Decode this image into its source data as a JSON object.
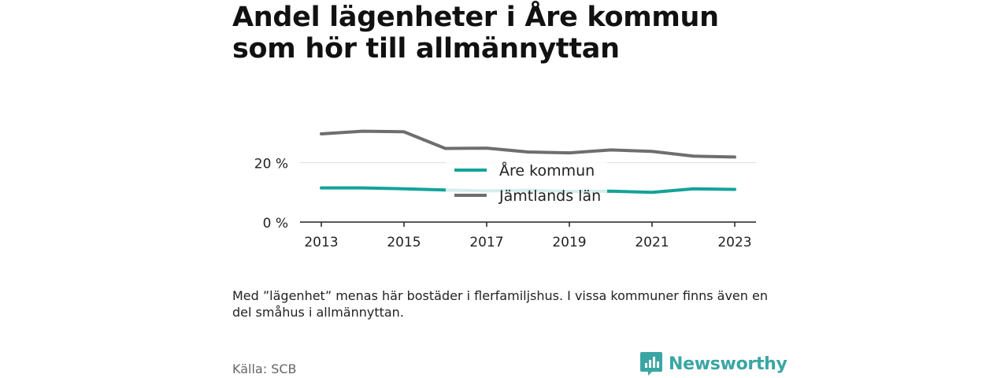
{
  "title": "Andel lägenheter i Åre kommun som hör till allmännyttan",
  "note": "Med ”lägenhet” menas här bostäder i flerfamiljshus. I vissa kommuner finns även en del småhus i allmännyttan.",
  "source": "Källa: SCB",
  "brand": {
    "name": "Newsworthy",
    "color": "#3aa6a3",
    "icon": "newsworthy-chart-bubble-icon"
  },
  "chart_data": {
    "type": "line",
    "title": "Andel lägenheter i Åre kommun som hör till allmännyttan",
    "x": [
      2013,
      2014,
      2015,
      2016,
      2017,
      2018,
      2019,
      2020,
      2021,
      2022,
      2023
    ],
    "x_ticks": [
      2013,
      2015,
      2017,
      2019,
      2021,
      2023
    ],
    "x_tick_labels": [
      "2013",
      "2015",
      "2017",
      "2019",
      "2021",
      "2023"
    ],
    "y_ticks": [
      0,
      20
    ],
    "y_tick_labels": [
      "0 %",
      "20 %"
    ],
    "ylim": [
      0,
      35
    ],
    "xlabel": "",
    "ylabel": "",
    "grid": true,
    "legend": "center",
    "series": [
      {
        "name": "Åre kommun",
        "color": "#13a39a",
        "values": [
          11.5,
          11.5,
          11.2,
          10.8,
          10.5,
          10.7,
          10.3,
          10.4,
          10.0,
          11.2,
          11.0
        ]
      },
      {
        "name": "Jämtlands län",
        "color": "#6e6e70",
        "values": [
          29.7,
          30.6,
          30.4,
          24.8,
          24.9,
          23.6,
          23.3,
          24.3,
          23.8,
          22.2,
          21.9
        ]
      }
    ]
  }
}
